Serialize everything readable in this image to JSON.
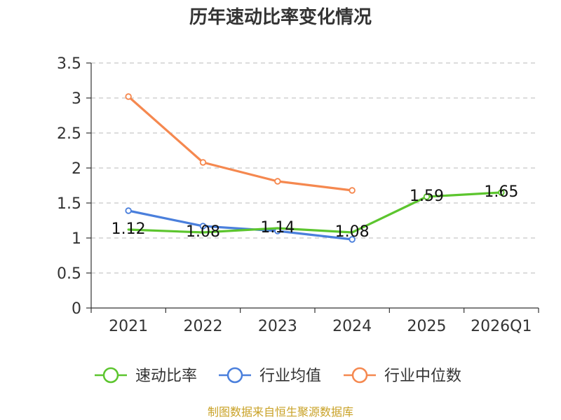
{
  "chart_data": {
    "type": "line",
    "title": "历年速动比率变化情况",
    "categories": [
      "2021",
      "2022",
      "2023",
      "2024",
      "2025",
      "2026Q1"
    ],
    "ylim": [
      0,
      3.5
    ],
    "yticks": [
      "0",
      "0.5",
      "1",
      "1.5",
      "2",
      "2.5",
      "3",
      "3.5"
    ],
    "grid": true,
    "legend_position": "bottom",
    "series": [
      {
        "name": "速动比率",
        "color": "#5cc52e",
        "values": [
          1.12,
          1.08,
          1.14,
          1.08,
          1.59,
          1.65
        ],
        "labels": [
          "1.12",
          "1.08",
          "1.14",
          "1.08",
          "1.59",
          "1.65"
        ],
        "marker_from": 4
      },
      {
        "name": "行业均值",
        "color": "#4a7fdc",
        "values": [
          1.39,
          1.17,
          1.1,
          0.98,
          null,
          null
        ]
      },
      {
        "name": "行业中位数",
        "color": "#f5884f",
        "values": [
          3.02,
          2.08,
          1.81,
          1.68,
          null,
          null
        ]
      }
    ],
    "source": "制图数据来自恒生聚源数据库"
  }
}
